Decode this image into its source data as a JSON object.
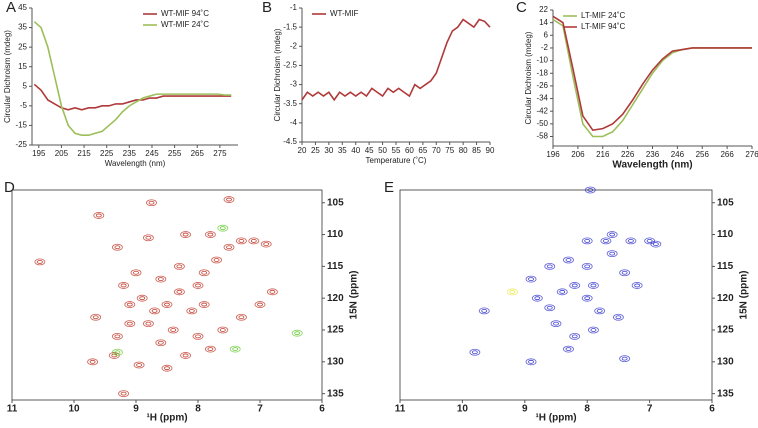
{
  "chart_data": [
    {
      "type": "line",
      "panel": "A",
      "xlabel": "Wavelength (nm)",
      "ylabel": "Circular Dichroism (mdeg)",
      "legend": "upper right",
      "x": [
        193,
        196,
        199,
        202,
        205,
        208,
        211,
        214,
        217,
        220,
        223,
        226,
        229,
        232,
        235,
        238,
        241,
        244,
        247,
        250,
        253,
        256,
        259,
        262,
        265,
        268,
        271,
        274,
        277,
        280
      ],
      "series": [
        {
          "name": "WT-MIF 94˚C",
          "color": "#b03a3a",
          "values": [
            6,
            3,
            -2,
            -4,
            -6,
            -7,
            -6,
            -7,
            -6,
            -6,
            -5,
            -5,
            -4,
            -4,
            -3,
            -2,
            -2,
            -1,
            -1,
            0,
            0,
            0,
            0,
            0,
            0,
            0,
            0,
            0,
            0,
            0
          ]
        },
        {
          "name": "WT-MIF 24˚C",
          "color": "#9cbf5a",
          "values": [
            38,
            35,
            25,
            10,
            -5,
            -15,
            -19,
            -20,
            -20,
            -19,
            -18,
            -15,
            -12,
            -8,
            -5,
            -3,
            -1,
            0,
            1,
            1,
            1,
            1,
            1,
            1,
            1,
            1,
            1,
            1,
            0.5,
            0.5
          ]
        }
      ],
      "xlim": [
        192,
        283
      ],
      "xticks": [
        195,
        205,
        215,
        225,
        235,
        245,
        255,
        265,
        275
      ],
      "ylim": [
        -25,
        45
      ],
      "yticks": [
        -25,
        -15,
        -5,
        5,
        15,
        25,
        35,
        45
      ]
    },
    {
      "type": "line",
      "panel": "B",
      "xlabel": "Temperature (˚C)",
      "ylabel": "Circular Dichroism (mdeg)",
      "legend": "upper left",
      "x": [
        20,
        22,
        24,
        26,
        28,
        30,
        32,
        34,
        36,
        38,
        40,
        42,
        44,
        46,
        48,
        50,
        52,
        54,
        56,
        58,
        60,
        62,
        64,
        66,
        68,
        70,
        72,
        74,
        76,
        78,
        80,
        82,
        84,
        86,
        88,
        90
      ],
      "series": [
        {
          "name": "WT-MIF",
          "color": "#b03a3a",
          "values": [
            -3.4,
            -3.2,
            -3.3,
            -3.2,
            -3.3,
            -3.2,
            -3.4,
            -3.2,
            -3.3,
            -3.2,
            -3.3,
            -3.2,
            -3.3,
            -3.1,
            -3.2,
            -3.3,
            -3.1,
            -3.2,
            -3.1,
            -3.2,
            -3.3,
            -3.0,
            -3.1,
            -3.0,
            -2.9,
            -2.7,
            -2.3,
            -1.9,
            -1.6,
            -1.5,
            -1.3,
            -1.4,
            -1.5,
            -1.3,
            -1.35,
            -1.5
          ]
        }
      ],
      "xlim": [
        20,
        90
      ],
      "xticks": [
        20,
        25,
        30,
        35,
        40,
        45,
        50,
        55,
        60,
        65,
        70,
        75,
        80,
        85,
        90
      ],
      "ylim": [
        -4.5,
        -1
      ],
      "yticks": [
        -4.5,
        -4,
        -3.5,
        -3,
        -2.5,
        -2,
        -1.5,
        -1
      ]
    },
    {
      "type": "line",
      "panel": "C",
      "xlabel": "Wavelength (nm)",
      "ylabel": "Circular Dichroism (mdeg)",
      "legend": "upper left",
      "x": [
        196,
        200,
        204,
        208,
        212,
        216,
        220,
        224,
        228,
        232,
        236,
        240,
        244,
        248,
        252,
        256,
        260,
        264,
        268,
        272,
        276
      ],
      "series": [
        {
          "name": "LT-MIF 24˚C",
          "color": "#9cbf5a",
          "values": [
            16,
            12,
            -20,
            -50,
            -58,
            -58,
            -55,
            -48,
            -38,
            -28,
            -18,
            -10,
            -5,
            -3,
            -2,
            -2,
            -2,
            -2,
            -2,
            -2,
            -2
          ]
        },
        {
          "name": "LT-MIF 94˚C",
          "color": "#b03a3a",
          "values": [
            18,
            14,
            -15,
            -45,
            -54,
            -53,
            -50,
            -44,
            -35,
            -25,
            -16,
            -9,
            -4,
            -3,
            -2,
            -2,
            -2,
            -2,
            -2,
            -2,
            -2
          ]
        }
      ],
      "xlim": [
        196,
        276
      ],
      "xticks": [
        196,
        206,
        216,
        226,
        236,
        246,
        256,
        266,
        276
      ],
      "ylim": [
        -64,
        22
      ],
      "yticks": [
        -58,
        -50,
        -42,
        -34,
        -26,
        -18,
        -10,
        -2,
        6,
        14,
        22
      ]
    },
    {
      "type": "scatter",
      "panel": "D",
      "xlabel": "¹H (ppm)",
      "ylabel": "15N (ppm)",
      "y_axis_position": "right",
      "series": [
        {
          "color": "#c0392b",
          "x": [
            10.55,
            9.6,
            9.3,
            9.2,
            9.0,
            8.9,
            8.7,
            8.5,
            8.3,
            8.1,
            8.4,
            8.6,
            8.8,
            9.1,
            9.3,
            8.0,
            7.9,
            7.7,
            7.5,
            7.3,
            7.1,
            6.9,
            7.8,
            8.2,
            8.8,
            9.1,
            9.65,
            9.35,
            8.5,
            8.2,
            7.8,
            7.6,
            7.3,
            7.0,
            6.8,
            8.0,
            7.9,
            8.3,
            8.6,
            9.2,
            9.7,
            8.95,
            7.5,
            8.75
          ],
          "y": [
            114.3,
            107,
            112,
            118,
            116,
            120,
            122,
            121,
            119,
            122,
            125,
            127,
            124,
            124,
            126,
            118,
            116,
            114,
            112,
            111,
            111,
            111.5,
            110,
            110,
            110.5,
            121,
            123,
            129,
            131,
            129,
            128,
            125,
            123,
            121,
            119,
            126,
            121,
            115,
            117,
            135,
            130,
            130.5,
            104.5,
            105
          ]
        },
        {
          "color": "#66cc33",
          "x": [
            9.3,
            7.4,
            6.4,
            7.6
          ],
          "y": [
            128.5,
            128,
            125.5,
            109
          ]
        }
      ],
      "xlim": [
        11,
        6
      ],
      "xticks": [
        11,
        10,
        9,
        8,
        7,
        6
      ],
      "ylim": [
        136,
        103
      ],
      "yticks": [
        105,
        110,
        115,
        120,
        125,
        130,
        135
      ]
    },
    {
      "type": "scatter",
      "panel": "E",
      "xlabel": "¹H (ppm)",
      "ylabel": "15N (ppm)",
      "y_axis_position": "right",
      "series": [
        {
          "color": "#3a3ad0",
          "x": [
            9.65,
            9.8,
            8.6,
            8.4,
            8.2,
            8.0,
            7.8,
            7.5,
            7.4,
            8.0,
            8.3,
            8.6,
            8.9,
            7.7,
            7.3,
            7.0,
            6.9,
            8.0,
            7.6,
            7.4,
            7.2,
            8.5,
            8.2,
            7.9,
            7.6,
            8.3,
            8.8,
            7.95,
            8.9,
            7.9
          ],
          "y": [
            122,
            128.5,
            121.5,
            119,
            118,
            120,
            122,
            123,
            129.5,
            115,
            114,
            115,
            117,
            111,
            111,
            111,
            111.5,
            111,
            113,
            116,
            118,
            124,
            126,
            125,
            110,
            128,
            120,
            103,
            130,
            118
          ]
        },
        {
          "color": "#e8e84a",
          "x": [
            9.2
          ],
          "y": [
            119
          ]
        }
      ],
      "xlim": [
        11,
        6
      ],
      "xticks": [
        11,
        10,
        9,
        8,
        7,
        6
      ],
      "ylim": [
        136,
        103
      ],
      "yticks": [
        105,
        110,
        115,
        120,
        125,
        130,
        135
      ]
    }
  ]
}
